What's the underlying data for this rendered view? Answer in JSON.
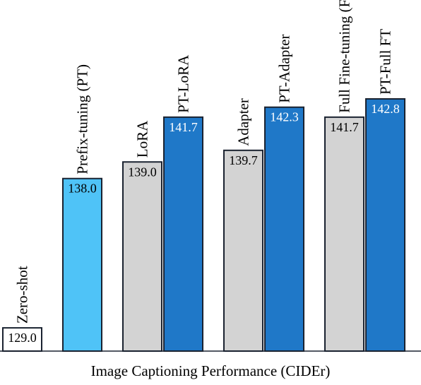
{
  "chart_data": {
    "type": "bar",
    "title": "",
    "xlabel": "Image Captioning Performance (CIDEr)",
    "ylabel": "",
    "categories": [
      "Zero-shot",
      "Prefix-tuning (PT)",
      "LoRA",
      "PT-LoRA",
      "Adapter",
      "PT-Adapter",
      "Full Fine-tuning (FT)",
      "PT-Full FT"
    ],
    "values": [
      129.0,
      138.0,
      139.0,
      141.7,
      139.7,
      142.3,
      141.7,
      142.8
    ],
    "value_labels": [
      "129.0",
      "138.0",
      "139.0",
      "141.7",
      "139.7",
      "142.3",
      "141.7",
      "142.8"
    ],
    "ylim": [
      127.6,
      143.6
    ],
    "grid": false,
    "legend": "none",
    "colors": {
      "zero_shot": "#ffffff",
      "prefix_tuning": "#4fc3f7",
      "baseline": "#d3d3d3",
      "pt_variant": "#1f78c8",
      "outline": "#1a2230",
      "label_text_dark": "#000000",
      "label_text_light": "#ffffff"
    }
  }
}
